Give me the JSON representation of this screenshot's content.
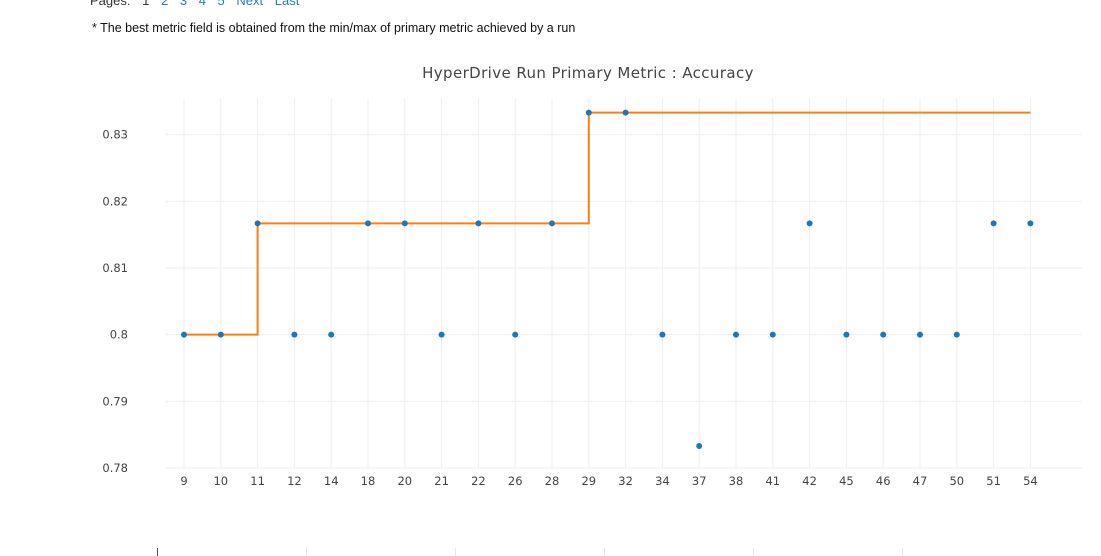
{
  "pager": {
    "label": "Pages:",
    "items": [
      {
        "label": "1",
        "current": true
      },
      {
        "label": "2",
        "current": false
      },
      {
        "label": "3",
        "current": false
      },
      {
        "label": "4",
        "current": false
      },
      {
        "label": "5",
        "current": false
      },
      {
        "label": "Next",
        "current": false
      },
      {
        "label": "Last",
        "current": false
      }
    ]
  },
  "footnote": "* The best metric field is obtained from the min/max of primary metric achieved by a run",
  "chart_data": {
    "type": "scatter",
    "title": "HyperDrive Run Primary Metric : Accuracy",
    "xlabel": "",
    "ylabel": "",
    "categories": [
      "9",
      "10",
      "11",
      "12",
      "14",
      "18",
      "20",
      "21",
      "22",
      "26",
      "28",
      "29",
      "32",
      "34",
      "37",
      "38",
      "41",
      "42",
      "45",
      "46",
      "47",
      "50",
      "51",
      "54"
    ],
    "series": [
      {
        "values": [
          0.8,
          0.8,
          0.8167,
          0.8,
          0.8,
          0.8167,
          0.8167,
          0.8,
          0.8167,
          0.8,
          0.8167,
          0.8333,
          0.8333,
          0.8,
          0.7833,
          0.8,
          0.8,
          0.8167,
          0.8,
          0.8,
          0.8,
          0.8,
          0.8167,
          0.8167
        ]
      },
      {
        "values": [
          0.8,
          0.8,
          0.8167,
          0.8167,
          0.8167,
          0.8167,
          0.8167,
          0.8167,
          0.8167,
          0.8167,
          0.8167,
          0.8333,
          0.8333,
          0.8333,
          0.8333,
          0.8333,
          0.8333,
          0.8333,
          0.8333,
          0.8333,
          0.8333,
          0.8333,
          0.8333,
          0.8333
        ]
      }
    ],
    "yticks": [
      "0.78",
      "0.79",
      "0.8",
      "0.81",
      "0.82",
      "0.83"
    ],
    "yticks_values": [
      0.78,
      0.79,
      0.8,
      0.81,
      0.82,
      0.83
    ],
    "ylim": [
      0.78,
      0.8355
    ],
    "grid": true,
    "colors": {
      "points": "#1f77b4",
      "best_line": "#ff7f0e",
      "grid": "#eeeeee"
    }
  }
}
